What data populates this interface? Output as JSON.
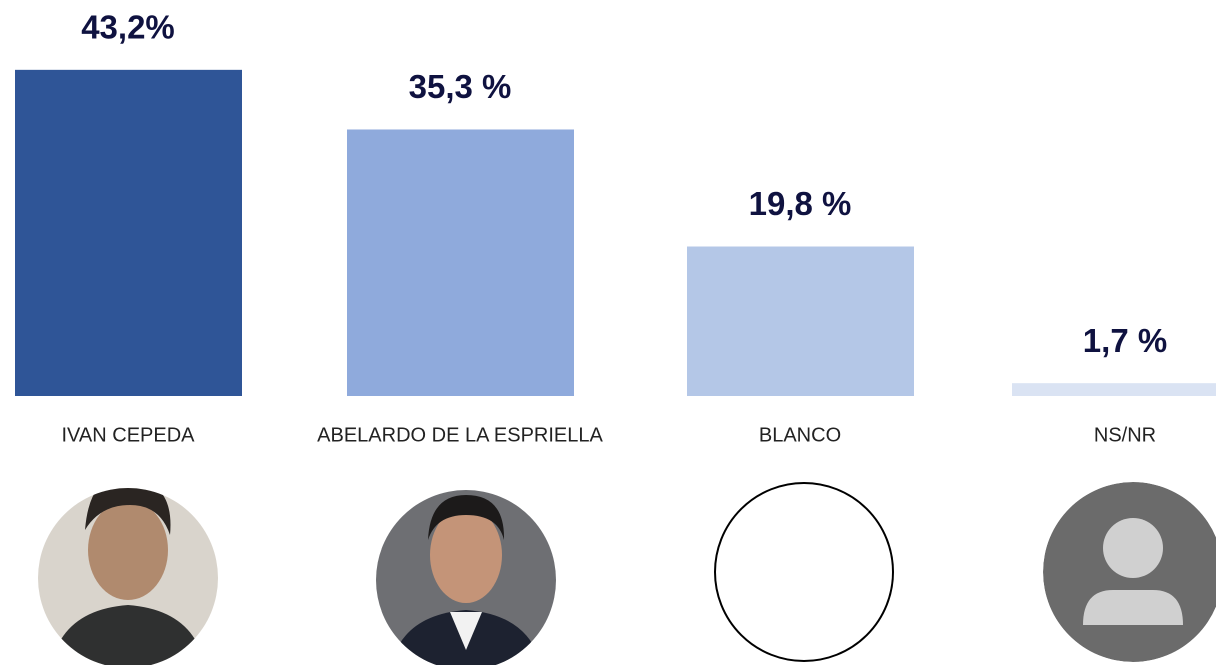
{
  "chart_data": {
    "type": "bar",
    "categories": [
      "IVAN CEPEDA",
      "ABELARDO DE LA ESPRIELLA",
      "BLANCO",
      "NS/NR"
    ],
    "values": [
      43.2,
      35.3,
      19.8,
      1.7
    ],
    "value_labels": [
      "43,2%",
      "35,3 %",
      "19,8 %",
      "1,7 %"
    ],
    "colors": [
      "#2f5597",
      "#8faadc",
      "#b4c7e7",
      "#dae3f3"
    ]
  }
}
